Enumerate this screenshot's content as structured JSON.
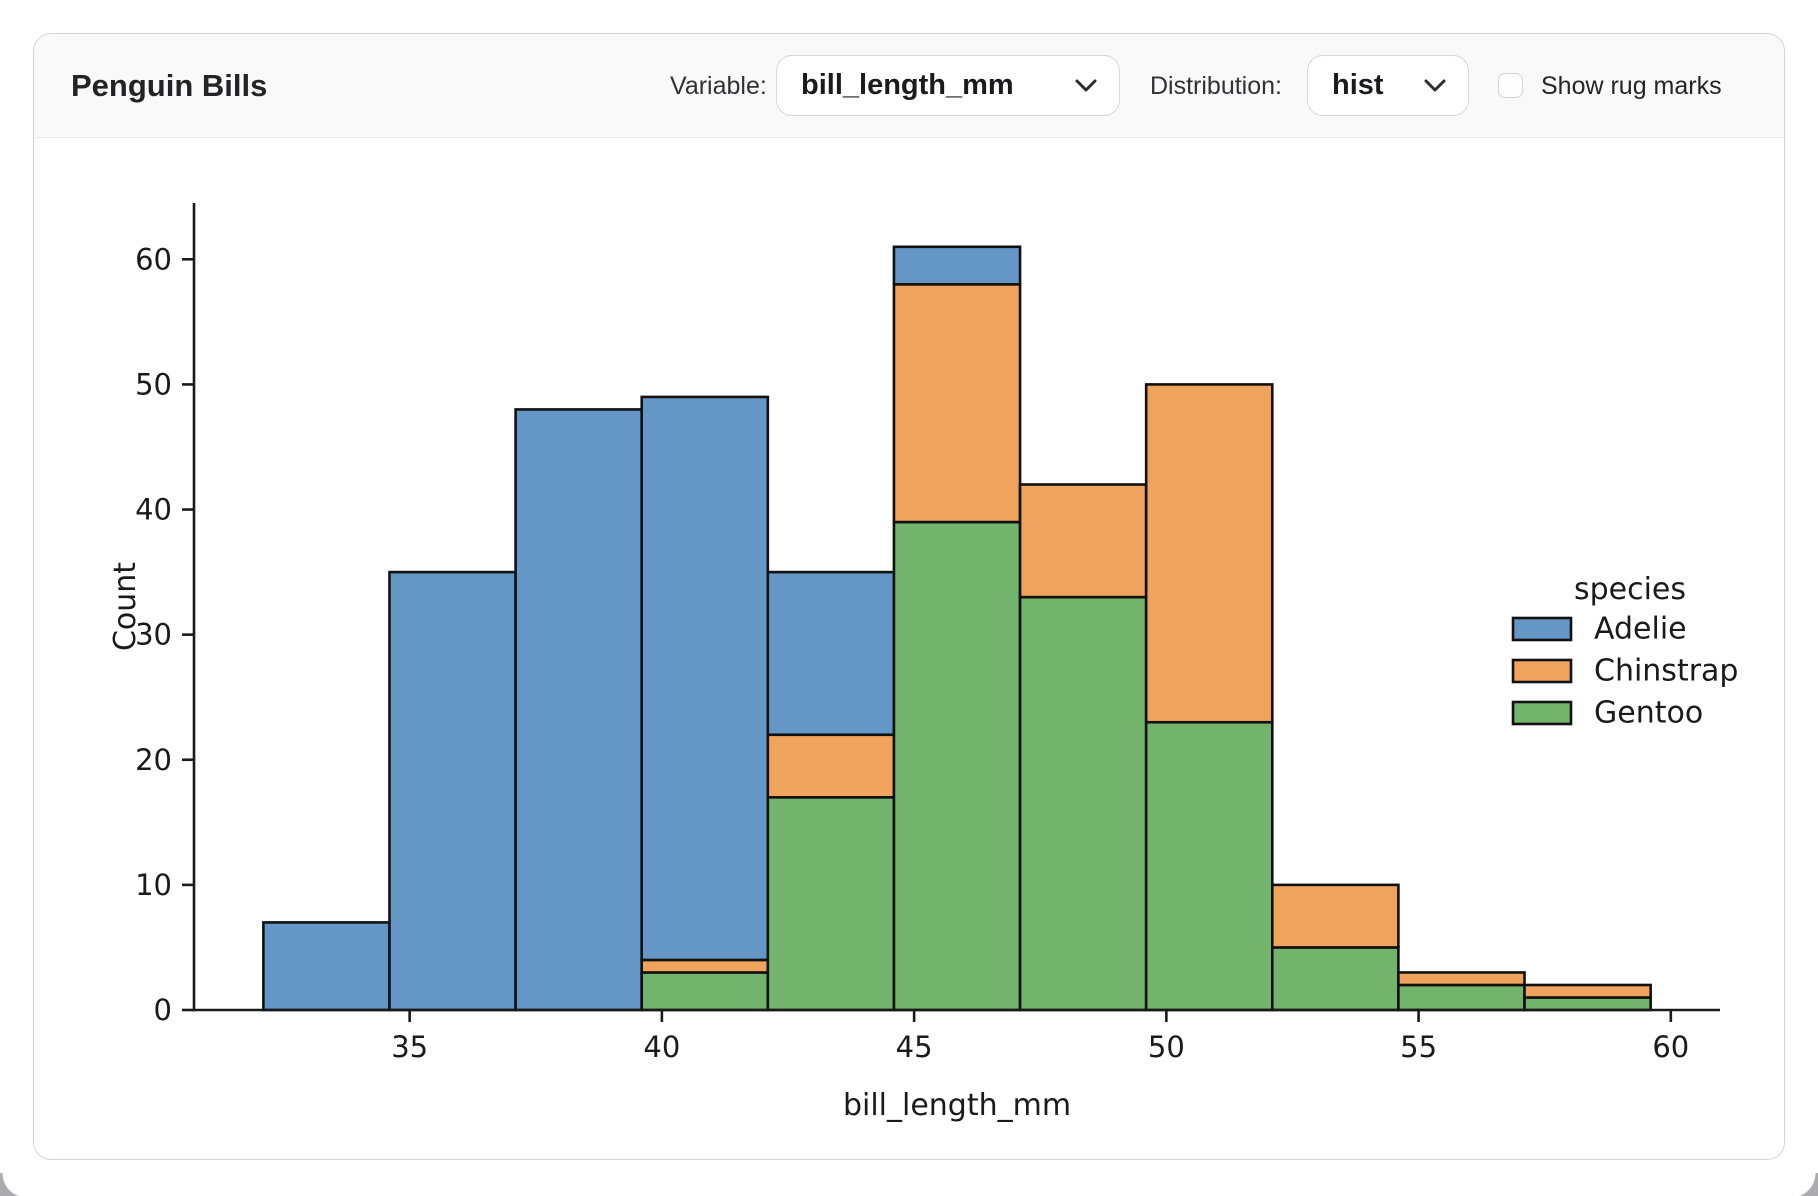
{
  "header": {
    "title": "Penguin Bills",
    "variable_label": "Variable:",
    "variable_value": "bill_length_mm",
    "distribution_label": "Distribution:",
    "distribution_value": "hist",
    "rug_label": "Show rug marks",
    "rug_checked": false
  },
  "chart_data": {
    "type": "bar",
    "subtype": "stacked-histogram",
    "title": "",
    "xlabel": "bill_length_mm",
    "ylabel": "Count",
    "bin_edges": [
      32.1,
      34.6,
      37.1,
      39.6,
      42.1,
      44.6,
      47.1,
      49.6,
      52.1,
      54.6,
      57.1,
      59.6
    ],
    "series": [
      {
        "name": "Gentoo",
        "color": "#73b46c",
        "values": [
          0,
          0,
          0,
          3,
          17,
          39,
          33,
          23,
          5,
          2,
          1
        ]
      },
      {
        "name": "Chinstrap",
        "color": "#f0a35c",
        "values": [
          0,
          0,
          0,
          1,
          5,
          19,
          9,
          27,
          5,
          1,
          1
        ]
      },
      {
        "name": "Adelie",
        "color": "#6497c6",
        "values": [
          7,
          35,
          48,
          45,
          13,
          3,
          0,
          0,
          0,
          0,
          0
        ]
      }
    ],
    "stack_order_note": "series listed bottom-to-top",
    "bin_totals": [
      7,
      35,
      48,
      49,
      35,
      61,
      42,
      50,
      10,
      3,
      2
    ],
    "legend": {
      "title": "species",
      "entries": [
        "Adelie",
        "Chinstrap",
        "Gentoo"
      ],
      "position": "center right"
    },
    "xticks": [
      35,
      40,
      45,
      50,
      55,
      60
    ],
    "yticks": [
      0,
      10,
      20,
      30,
      40,
      50,
      60
    ],
    "xlim": [
      30.725,
      60.975
    ],
    "ylim": [
      0,
      64.5
    ],
    "grid": false,
    "edge_color": "#111111",
    "text_color": "#1a1a1a"
  }
}
